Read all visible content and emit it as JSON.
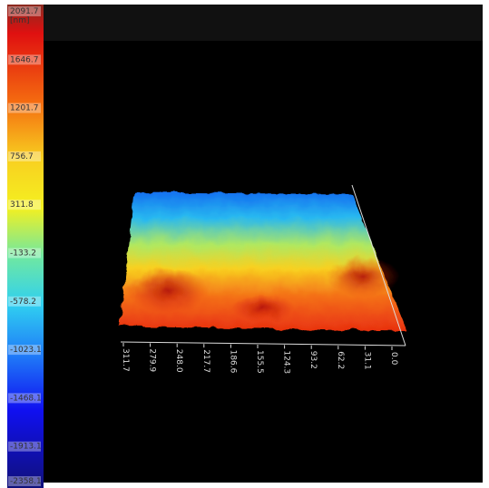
{
  "colorbar": {
    "unit": "[nm]",
    "labels": [
      "2091.7",
      "1646.7",
      "1201.7",
      "756.7",
      "311.8",
      "-133.2",
      "-578.2",
      "-1023.1",
      "-1468.1",
      "-1913.1",
      "-2358.1"
    ]
  },
  "x_axis": {
    "labels": [
      "311.7",
      "279.9",
      "248.0",
      "217.7",
      "186.6",
      "155.5",
      "124.3",
      "93.2",
      "62.2",
      "31.1",
      "0.0"
    ]
  }
}
